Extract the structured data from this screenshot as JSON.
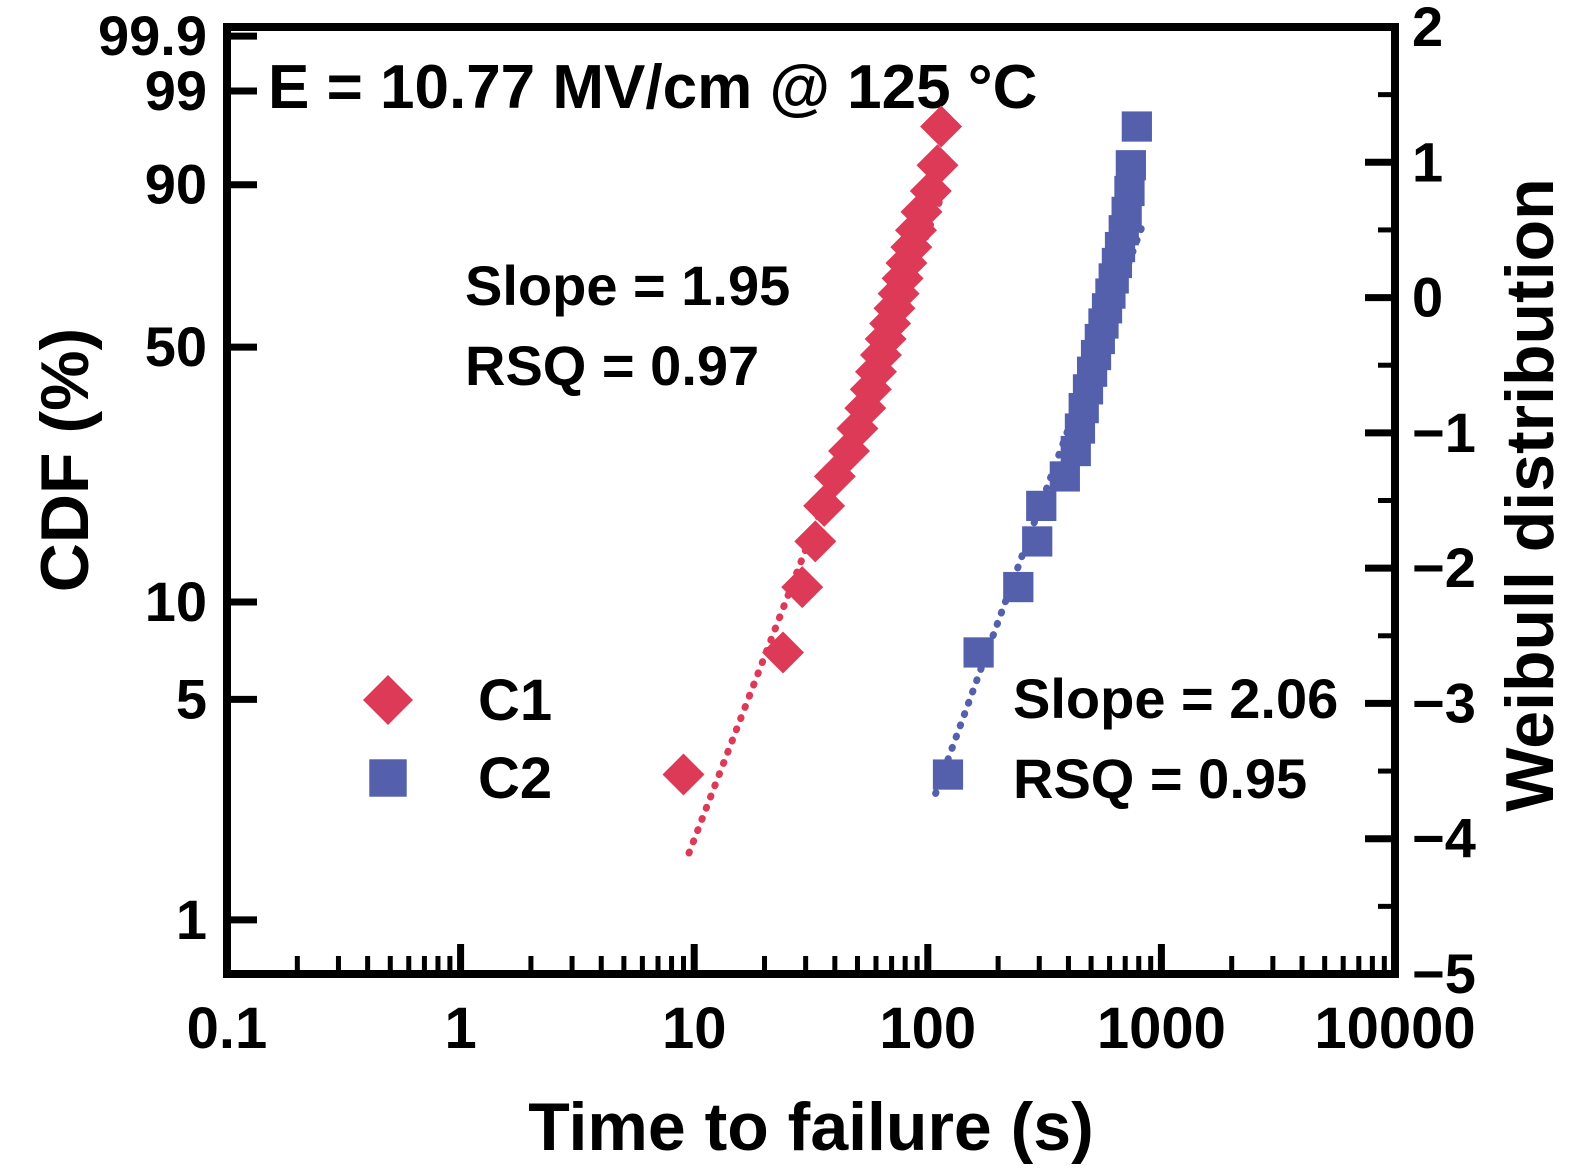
{
  "figure": {
    "kind": "weibull-probability-plot",
    "background": "#ffffff",
    "frame_color": "#000000"
  },
  "chart_data": {
    "type": "scatter",
    "title": "E = 10.77 MV/cm @ 125 °C",
    "xlabel": "Time to failure (s)",
    "ylabel_left": "CDF (%)",
    "ylabel_right": "Weibull distribution",
    "x_scale": "log",
    "xlim": [
      0.1,
      10000
    ],
    "x_ticks": [
      0.1,
      1,
      10,
      100,
      1000,
      10000
    ],
    "x_tick_labels": [
      "0.1",
      "1",
      "10",
      "100",
      "1000",
      "10000"
    ],
    "left_tick_cdf_percent": [
      99.9,
      99,
      90,
      50,
      10,
      5,
      1
    ],
    "left_tick_labels": [
      "99.9",
      "99",
      "90",
      "50",
      "10",
      "5",
      "1"
    ],
    "right_ylim": [
      -5,
      2
    ],
    "right_major_ticks": [
      2,
      1,
      0,
      -1,
      -2,
      -3,
      -4,
      -5
    ],
    "right_tick_labels": [
      "2",
      "1",
      "0",
      "−1",
      "−2",
      "−3",
      "−4",
      "−5"
    ],
    "right_minor_ticks": [
      1.5,
      0.5,
      -0.5,
      -1.5,
      -2.5,
      -3.5,
      -4.5
    ],
    "grid": false,
    "legend_position": "inside-lower-left",
    "series": [
      {
        "name": "C1",
        "marker": "diamond",
        "color": "#dc3a56",
        "slope": 1.95,
        "rsq": 0.97,
        "weibull_beta": 1.95,
        "weibull_eta_s": 78,
        "fit_line_t_range": [
          9.5,
          118
        ],
        "points_t_cdf": [
          [
            9,
            2.9
          ],
          [
            24,
            7.0
          ],
          [
            29,
            11.1
          ],
          [
            33,
            15.2
          ],
          [
            36,
            19.3
          ],
          [
            40,
            23.4
          ],
          [
            46,
            27.5
          ],
          [
            50,
            31.6
          ],
          [
            54,
            35.7
          ],
          [
            57,
            39.8
          ],
          [
            60,
            43.9
          ],
          [
            63,
            48.0
          ],
          [
            66,
            52.1
          ],
          [
            69,
            56.2
          ],
          [
            72,
            60.3
          ],
          [
            75,
            64.3
          ],
          [
            78,
            68.4
          ],
          [
            81,
            72.5
          ],
          [
            85,
            76.6
          ],
          [
            89,
            80.7
          ],
          [
            94,
            84.8
          ],
          [
            103,
            88.9
          ],
          [
            110,
            93.0
          ],
          [
            114,
            97.1
          ]
        ]
      },
      {
        "name": "C2",
        "marker": "square",
        "color": "#5560ad",
        "slope": 2.06,
        "rsq": 0.95,
        "weibull_beta": 2.06,
        "weibull_eta_s": 640,
        "fit_line_t_range": [
          108,
          820
        ],
        "points_t_cdf": [
          [
            122,
            2.9
          ],
          [
            165,
            7.0
          ],
          [
            244,
            11.1
          ],
          [
            294,
            15.2
          ],
          [
            306,
            19.3
          ],
          [
            386,
            23.4
          ],
          [
            430,
            27.5
          ],
          [
            448,
            31.6
          ],
          [
            465,
            35.7
          ],
          [
            485,
            39.8
          ],
          [
            505,
            43.9
          ],
          [
            525,
            48.0
          ],
          [
            545,
            52.1
          ],
          [
            565,
            56.2
          ],
          [
            585,
            60.3
          ],
          [
            605,
            64.3
          ],
          [
            625,
            68.4
          ],
          [
            645,
            72.5
          ],
          [
            665,
            76.6
          ],
          [
            690,
            80.7
          ],
          [
            710,
            84.8
          ],
          [
            730,
            88.9
          ],
          [
            740,
            93.0
          ],
          [
            785,
            97.1
          ]
        ]
      }
    ],
    "annotations": [
      {
        "series": "C1",
        "lines": [
          "Slope = 1.95",
          "RSQ = 0.97"
        ],
        "color": "#e2415c"
      },
      {
        "series": "C2",
        "lines": [
          "Slope = 2.06",
          "RSQ = 0.95"
        ],
        "color": "#5560b4"
      }
    ]
  },
  "legend": {
    "items": [
      {
        "label": "C1",
        "marker": "diamond",
        "color": "#dc3a56"
      },
      {
        "label": "C2",
        "marker": "square",
        "color": "#5560ad"
      }
    ]
  }
}
